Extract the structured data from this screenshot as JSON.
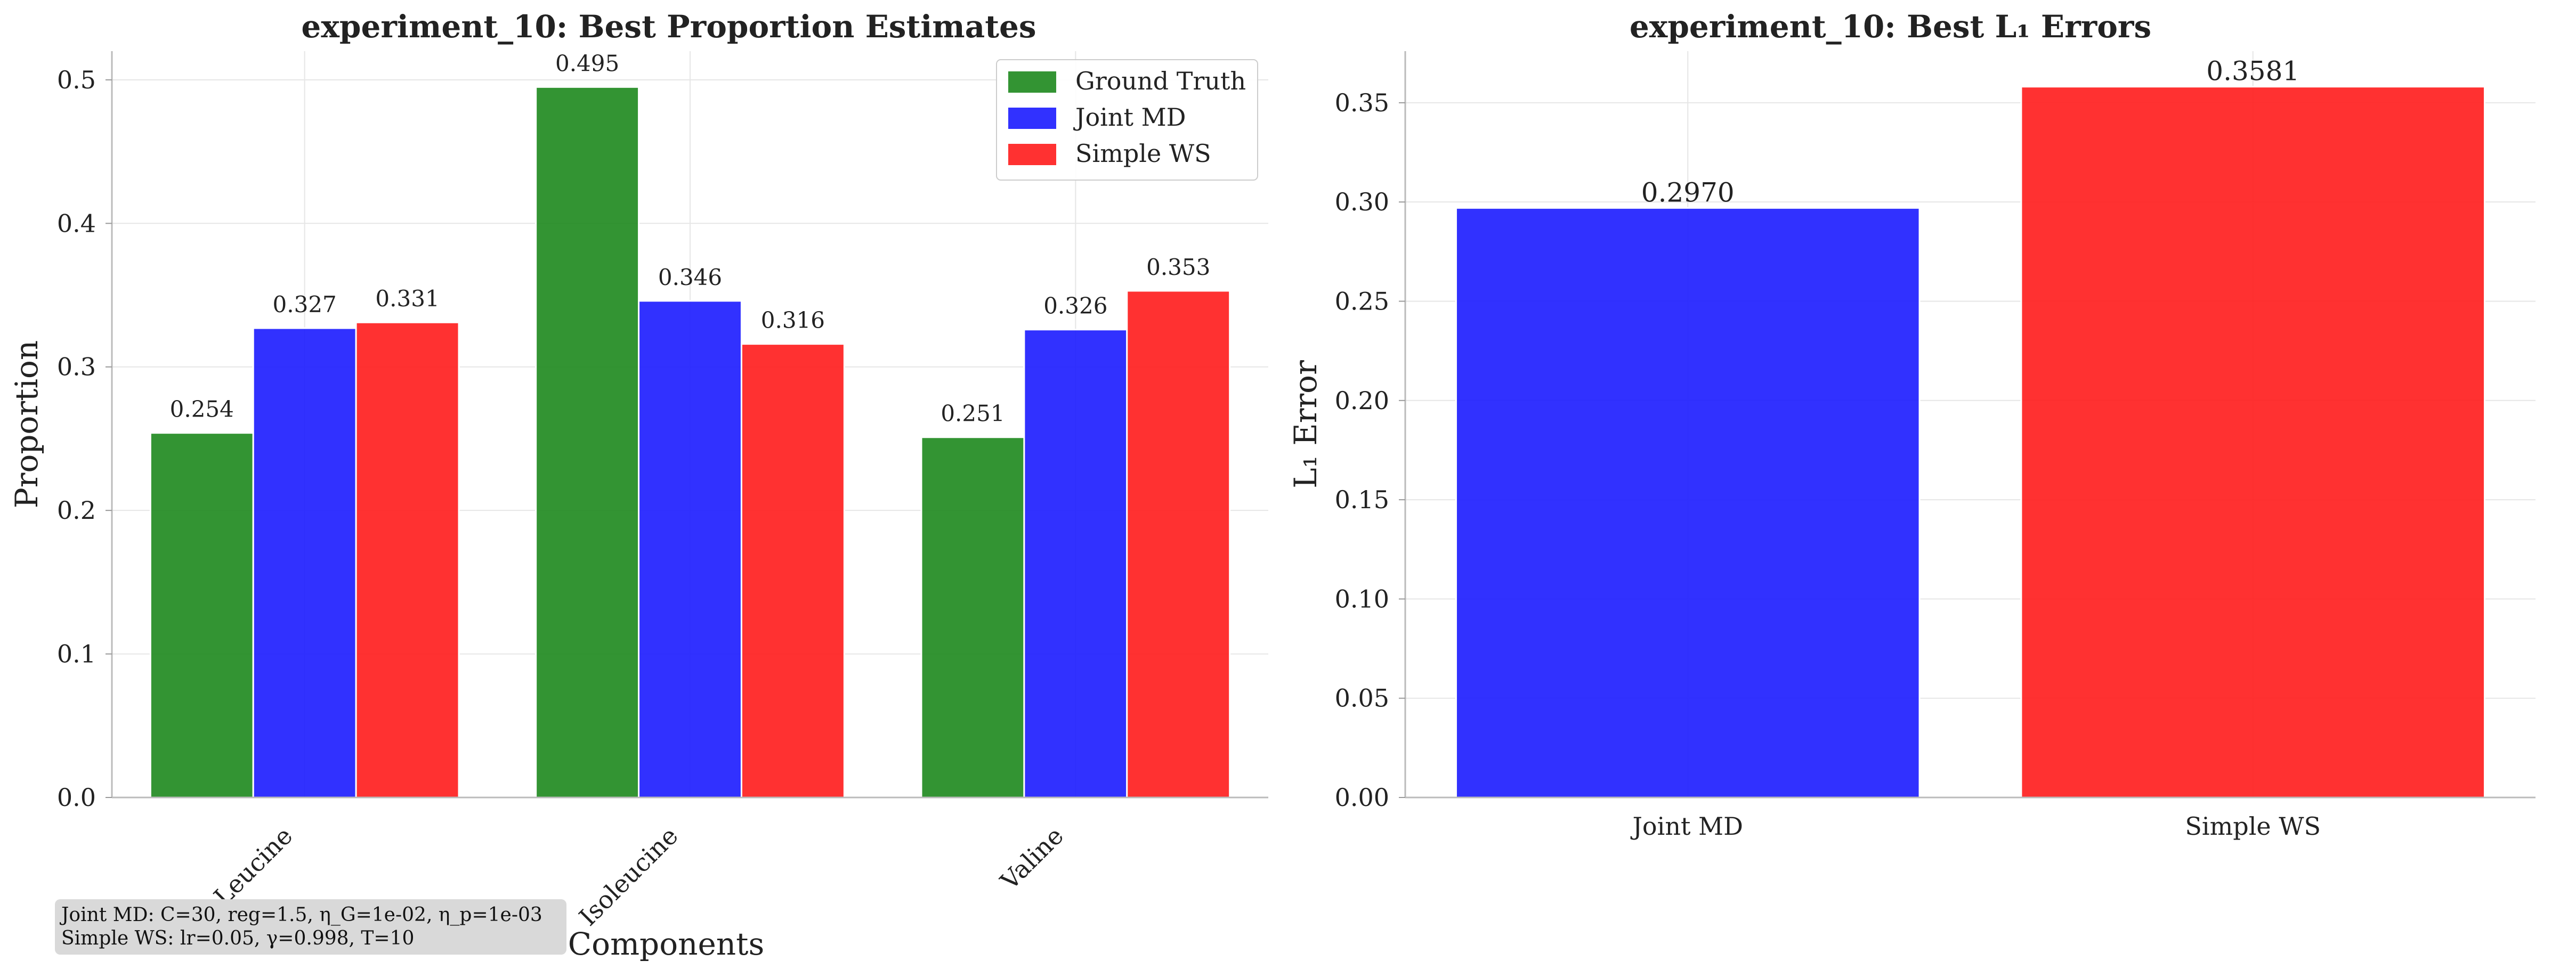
{
  "chart_data": [
    {
      "type": "bar",
      "title": "experiment_10: Best Proportion Estimates",
      "xlabel": "Components",
      "ylabel": "Proportion",
      "categories": [
        "Leucine",
        "Isoleucine",
        "Valine"
      ],
      "series": [
        {
          "name": "Ground Truth",
          "color": "#228B22",
          "values": [
            0.254,
            0.495,
            0.251
          ],
          "labels": [
            "0.254",
            "0.495",
            "0.251"
          ]
        },
        {
          "name": "Joint MD",
          "color": "#1f1fff",
          "values": [
            0.327,
            0.346,
            0.326
          ],
          "labels": [
            "0.327",
            "0.346",
            "0.326"
          ]
        },
        {
          "name": "Simple WS",
          "color": "#ff2020",
          "values": [
            0.331,
            0.316,
            0.353
          ],
          "labels": [
            "0.331",
            "0.316",
            "0.353"
          ]
        }
      ],
      "ylim": [
        0,
        0.52
      ],
      "yticks": [
        0.0,
        0.1,
        0.2,
        0.3,
        0.4,
        0.5
      ],
      "ytick_labels": [
        "0.0",
        "0.1",
        "0.2",
        "0.3",
        "0.4",
        "0.5"
      ],
      "grid": true,
      "legend_position": "top-right",
      "annotation": [
        "Joint MD: C=30, reg=1.5, η_G=1e-02, η_p=1e-03",
        "Simple WS: lr=0.05, γ=0.998, T=10"
      ]
    },
    {
      "type": "bar",
      "title": "experiment_10: Best L₁ Errors",
      "xlabel": "",
      "ylabel": "L₁ Error",
      "categories": [
        "Joint MD",
        "Simple WS"
      ],
      "values": [
        0.297,
        0.3581
      ],
      "value_labels": [
        "0.2970",
        "0.3581"
      ],
      "colors": [
        "#1f1fff",
        "#ff2020"
      ],
      "ylim": [
        0,
        0.376
      ],
      "yticks": [
        0.0,
        0.05,
        0.1,
        0.15,
        0.2,
        0.25,
        0.3,
        0.35
      ],
      "ytick_labels": [
        "0.00",
        "0.05",
        "0.10",
        "0.15",
        "0.20",
        "0.25",
        "0.30",
        "0.35"
      ],
      "grid": true
    }
  ]
}
